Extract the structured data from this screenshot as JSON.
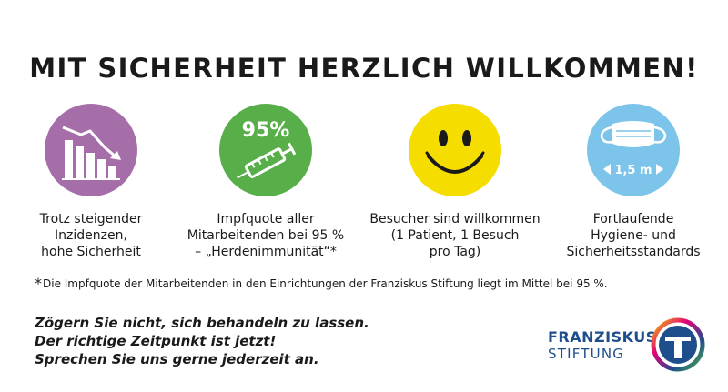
{
  "headline": "MIT SICHERHEIT HERZLICH WILLKOMMEN!",
  "features": [
    {
      "icon": "declining-chart-icon",
      "color": "#a56ea9",
      "caption": "Trotz steigender\nInzidenzen,\nhohe Sicherheit"
    },
    {
      "icon": "syringe-icon",
      "color": "#58ae48",
      "badge": "95%",
      "caption": "Impfquote aller\nMitarbeitenden bei 95 %\n– „Herdenimmunität“*"
    },
    {
      "icon": "smiley-icon",
      "color": "#f6dd00",
      "caption": "Besucher sind willkommen\n(1 Patient, 1 Besuch\npro Tag)"
    },
    {
      "icon": "face-mask-icon",
      "color": "#7cc4ea",
      "distance": "1,5 m",
      "caption": "Fortlaufende\nHygiene- und\nSicherheitsstandards"
    }
  ],
  "footnote": {
    "mark": "*",
    "text": "Die Impfquote der Mitarbeitenden in den Einrichtungen der Franziskus Stiftung liegt im Mittel bei 95 %."
  },
  "tagline": [
    "Zögern Sie nicht, sich behandeln zu lassen.",
    "Der richtige Zeitpunkt ist jetzt!",
    "Sprechen Sie uns gerne jederzeit an."
  ],
  "logo": {
    "line1": "FRANZISKUS",
    "line2": "STIFTUNG",
    "brand_color": "#1f4e8c"
  }
}
